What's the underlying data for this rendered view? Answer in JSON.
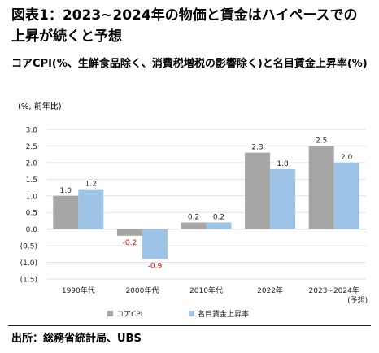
{
  "header": {
    "title": "図表1：2023~2024年の物価と賃金はハイペースでの上昇が続くと予想",
    "subtitle": "コアCPI(%、生鮮食品除く、消費税増税の影響除く)と名目賃金上昇率(%)"
  },
  "chart_data": {
    "type": "bar",
    "unit_label": "(%, 前年比)",
    "categories": [
      "1990年代",
      "2000年代",
      "2010年代",
      "2022年",
      "2023~2024年"
    ],
    "category_notes": [
      "",
      "",
      "",
      "",
      "(予想)"
    ],
    "series": [
      {
        "name": "コアCPI",
        "values": [
          1.0,
          -0.2,
          0.2,
          2.3,
          2.5
        ],
        "labels": [
          "1.0",
          "-0.2",
          "0.2",
          "2.3",
          "2.5"
        ],
        "color": "#a6a6a6"
      },
      {
        "name": "名目賃金上昇率",
        "values": [
          1.2,
          -0.9,
          0.2,
          1.8,
          2.0
        ],
        "labels": [
          "1.2",
          "-0.9",
          "0.2",
          "1.8",
          "2.0"
        ],
        "color": "#9dc3e6"
      }
    ],
    "negative_label_color": "#e00000",
    "ylim": [
      -1.5,
      3.0
    ],
    "yticks": [
      3.0,
      2.5,
      2.0,
      1.5,
      1.0,
      0.5,
      0.0,
      -0.5,
      -1.0,
      -1.5
    ],
    "ytick_labels": [
      "3.0",
      "2.5",
      "2.0",
      "1.5",
      "1.0",
      "0.5",
      "0.0",
      "(0.5)",
      "(1.0)",
      "(1.5)"
    ],
    "grid": true,
    "legend_position": "bottom"
  },
  "footer": {
    "source": "出所：総務省統計局、UBS"
  }
}
